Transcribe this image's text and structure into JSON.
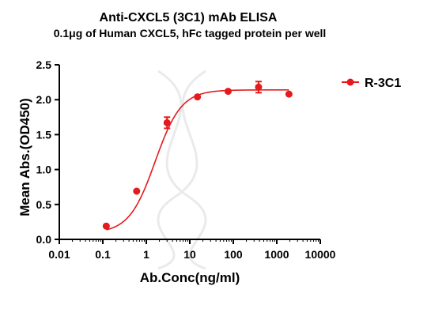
{
  "chart_data": {
    "type": "scatter",
    "title": "Anti-CXCL5 (3C1) mAb ELISA",
    "subtitle": "0.1μg of Human CXCL5, hFc tagged protein per well",
    "xlabel": "Ab.Conc(ng/ml)",
    "ylabel": "Mean Abs.(OD450)",
    "xscale": "log",
    "xlim": [
      0.01,
      10000
    ],
    "ylim": [
      0,
      2.5
    ],
    "xticks": [
      "0.01",
      "0.1",
      "1",
      "10",
      "100",
      "1000",
      "10000"
    ],
    "yticks": [
      "0.0",
      "0.5",
      "1.0",
      "1.5",
      "2.0",
      "2.5"
    ],
    "grid": false,
    "legend_position": "top-right",
    "colors": {
      "series": "#e41a1c"
    },
    "fit": {
      "model": "4PL",
      "bottom": 0.09,
      "top": 2.14,
      "ec50": 1.6,
      "hill": 1.45
    },
    "series": [
      {
        "name": "R-3C1",
        "x": [
          0.12,
          0.6,
          3.0,
          15.0,
          76.0,
          381.0,
          1905.0
        ],
        "y": [
          0.19,
          0.69,
          1.67,
          2.04,
          2.12,
          2.18,
          2.08
        ],
        "error": [
          0.0,
          0.0,
          0.08,
          0.0,
          0.0,
          0.08,
          0.0
        ]
      }
    ]
  }
}
